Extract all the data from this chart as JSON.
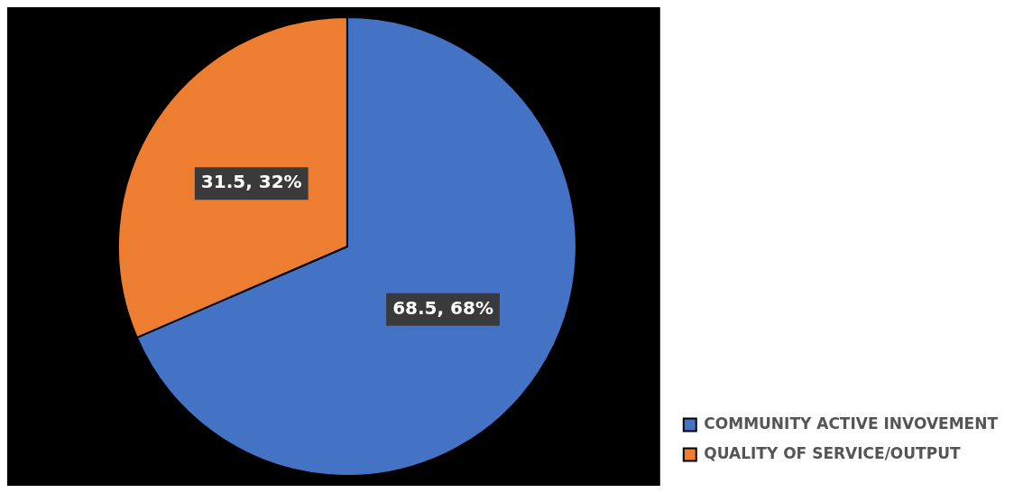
{
  "chart_data": {
    "type": "pie",
    "categories": [
      "COMMUNITY ACTIVE INVOVEMENT",
      "QUALITY OF SERVICE/OUTPUT"
    ],
    "values": [
      68.5,
      31.5
    ],
    "colors": [
      "#4472c4",
      "#ed7d31"
    ],
    "value_labels": [
      "68.5, 68%",
      "31.5, 32%"
    ],
    "legend": "bottom right"
  }
}
